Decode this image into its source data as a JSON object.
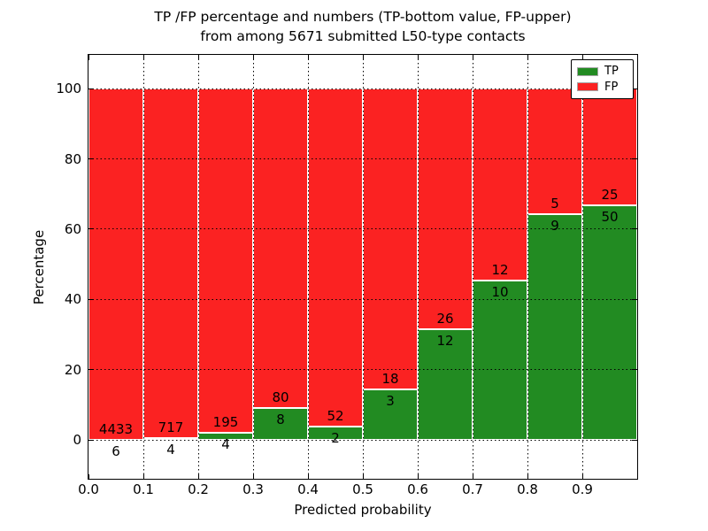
{
  "chart_data": {
    "type": "bar",
    "stacked": true,
    "title_line1": "TP /FP percentage and numbers (TP-bottom value, FP-upper)",
    "title_line2": "from among 5671 submitted L50-type contacts",
    "xlabel": "Predicted probability",
    "ylabel": "Percentage",
    "total_submitted": 5671,
    "xlim": [
      0.0,
      1.0
    ],
    "ylim": [
      -11.3,
      109.6
    ],
    "bin_width": 0.1,
    "bins_start": [
      0.0,
      0.1,
      0.2,
      0.3,
      0.4,
      0.5,
      0.6,
      0.7,
      0.8,
      0.9
    ],
    "x_tick_labels": [
      "0.0",
      "0.1",
      "0.2",
      "0.3",
      "0.4",
      "0.5",
      "0.6",
      "0.7",
      "0.8",
      "0.9"
    ],
    "y_ticks": [
      0,
      20,
      40,
      60,
      80,
      100
    ],
    "y_tick_labels": [
      "0",
      "20",
      "40",
      "60",
      "80",
      "100"
    ],
    "grid": "dotted black, drawn above bars",
    "bar_edge_color": "#ffffff",
    "legend_position": "upper right",
    "series": [
      {
        "name": "TP",
        "color": "#228b22",
        "counts": [
          6,
          4,
          4,
          8,
          2,
          3,
          12,
          10,
          9,
          50
        ]
      },
      {
        "name": "FP",
        "color": "#fb2222",
        "counts": [
          4433,
          717,
          195,
          80,
          52,
          18,
          26,
          12,
          5,
          25
        ]
      }
    ],
    "tp_percent": [
      0.14,
      0.55,
      2.01,
      9.09,
      3.7,
      14.29,
      31.58,
      45.45,
      64.29,
      66.67
    ]
  }
}
